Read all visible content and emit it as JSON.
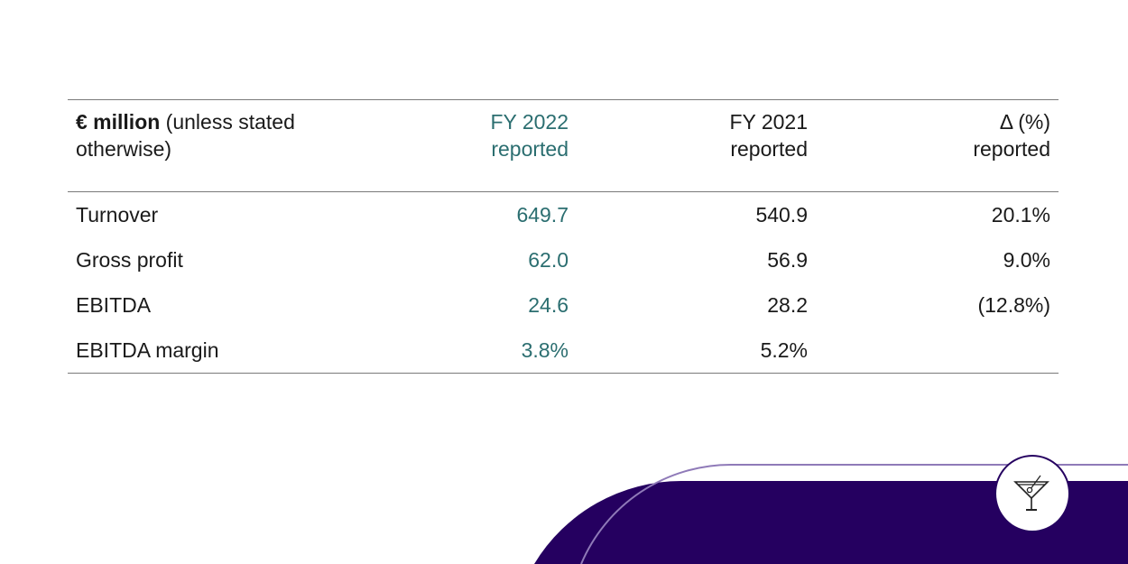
{
  "table": {
    "header": {
      "col0_bold": "€ million",
      "col0_rest": " (unless stated",
      "col0_line2": "otherwise)",
      "col1_line1": "FY 2022",
      "col1_line2": "reported",
      "col2_line1": "FY 2021",
      "col2_line2": "reported",
      "col3_line1": "Δ (%)",
      "col3_line2": "reported"
    },
    "rows": [
      {
        "label": "Turnover",
        "fy2022": "649.7",
        "fy2021": "540.9",
        "delta": "20.1%"
      },
      {
        "label": "Gross profit",
        "fy2022": "62.0",
        "fy2021": "56.9",
        "delta": "9.0%"
      },
      {
        "label": "EBITDA",
        "fy2022": "24.6",
        "fy2021": "28.2",
        "delta": "(12.8%)"
      },
      {
        "label": "EBITDA margin",
        "fy2022": "3.8%",
        "fy2021": "5.2%",
        "delta": ""
      }
    ]
  },
  "colors": {
    "accent_teal": "#2b6e70",
    "brand_purple": "#250060",
    "arc_lilac": "#8f7ab8"
  },
  "logo": {
    "icon": "cocktail-glass-icon"
  }
}
